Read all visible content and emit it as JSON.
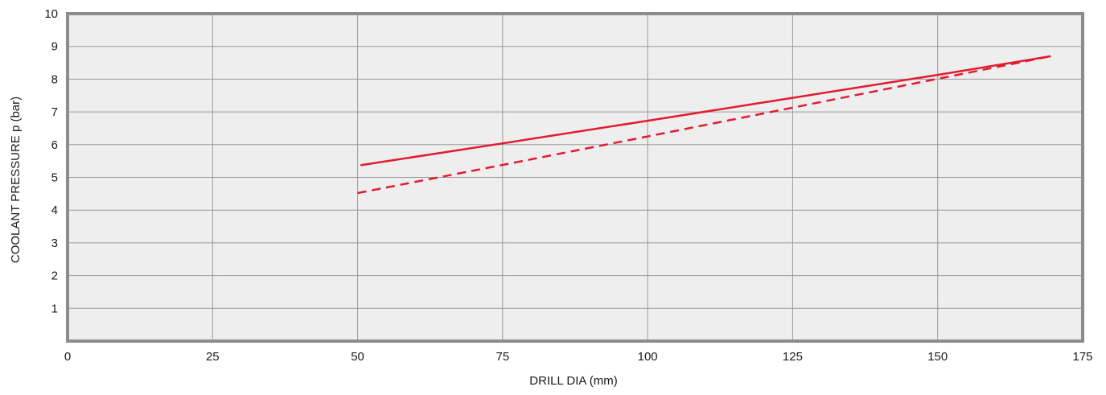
{
  "chart_data": {
    "type": "line",
    "title": "",
    "xlabel": "DRILL DIA (mm)",
    "ylabel": "COOLANT PRESSURE p (bar)",
    "xlim": [
      0,
      175
    ],
    "ylim": [
      0,
      10
    ],
    "x_ticks": [
      0,
      25,
      50,
      75,
      100,
      125,
      150,
      175
    ],
    "y_ticks": [
      1,
      2,
      3,
      4,
      5,
      6,
      7,
      8,
      9,
      10
    ],
    "grid": true,
    "legend": "none",
    "series": [
      {
        "style": "solid",
        "color": "#e31b2e",
        "points": [
          [
            50.5,
            5.37
          ],
          [
            75,
            6.04
          ],
          [
            100,
            6.73
          ],
          [
            125,
            7.43
          ],
          [
            150,
            8.13
          ],
          [
            169.5,
            8.7
          ]
        ]
      },
      {
        "style": "dashed",
        "color": "#e31b2e",
        "points": [
          [
            50,
            4.52
          ],
          [
            75,
            5.38
          ],
          [
            100,
            6.25
          ],
          [
            125,
            7.13
          ],
          [
            150,
            8.01
          ],
          [
            169.5,
            8.7
          ]
        ]
      }
    ]
  },
  "colors": {
    "plot_background": "#eeeeee",
    "grid": "#9a9a9a",
    "frame": "#8c8c8c",
    "series": "#e31b2e"
  }
}
